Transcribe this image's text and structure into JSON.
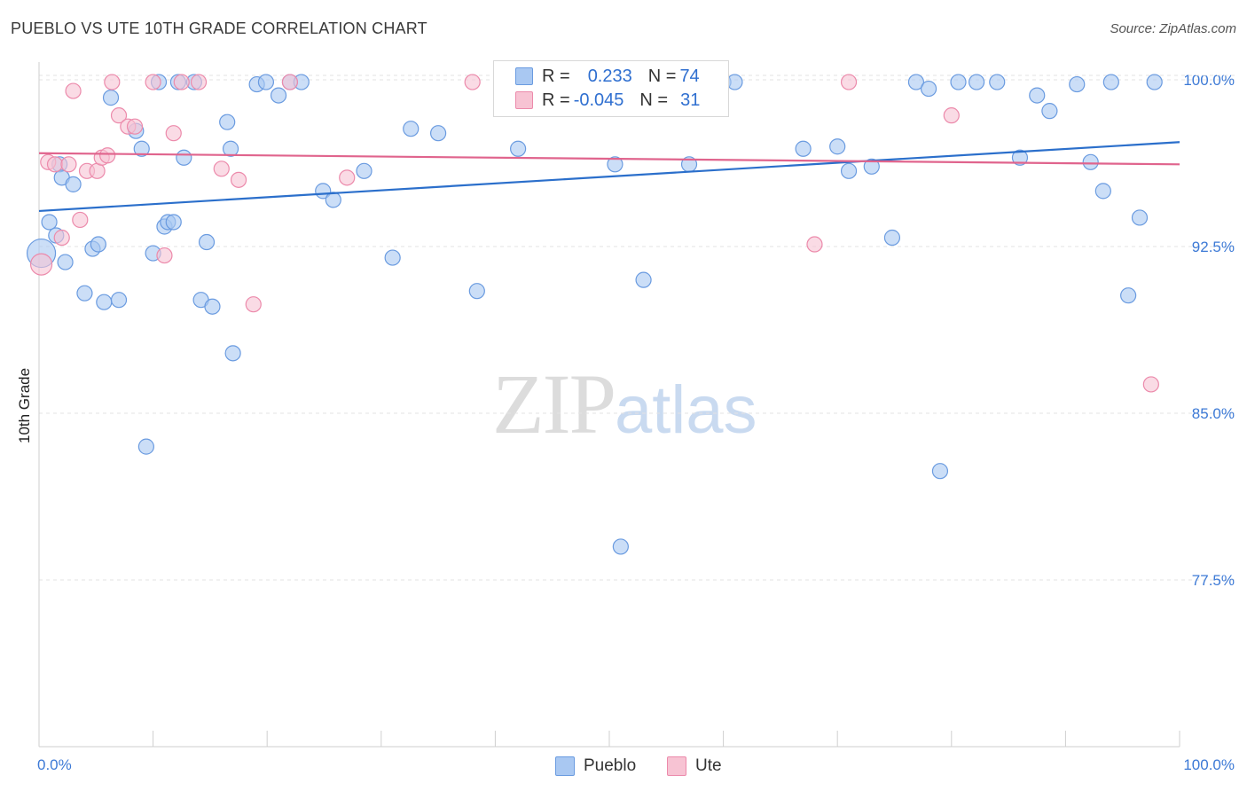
{
  "header": {
    "title": "PUEBLO VS UTE 10TH GRADE CORRELATION CHART",
    "source": "Source: ZipAtlas.com"
  },
  "watermark": {
    "zip": "ZIP",
    "atlas": "atlas"
  },
  "legend": {
    "pueblo": {
      "r_label": "R =",
      "r_value": "0.233",
      "n_label": "N =",
      "n_value": "74"
    },
    "ute": {
      "r_label": "R =",
      "r_value": "-0.045",
      "n_label": "N =",
      "n_value": "31"
    }
  },
  "bottom_legend": {
    "pueblo": "Pueblo",
    "ute": "Ute"
  },
  "colors": {
    "pueblo_fill": "#a9c8f2",
    "pueblo_stroke": "#6a9be0",
    "pueblo_line": "#2b6fcb",
    "ute_fill": "#f7c3d3",
    "ute_stroke": "#ec8aab",
    "ute_line": "#e0648d",
    "tick_label": "#3d7ad6",
    "grid": "#e3e3e3"
  },
  "chart_data": {
    "type": "scatter",
    "title": "PUEBLO VS UTE 10TH GRADE CORRELATION CHART",
    "xlabel": "",
    "ylabel": "10th Grade",
    "xlim": [
      0,
      100
    ],
    "ylim": [
      70,
      100.8
    ],
    "x_tick_labels": [
      "0.0%",
      "100.0%"
    ],
    "y_ticks": [
      77.5,
      85.0,
      92.5,
      100.0
    ],
    "y_tick_labels": [
      "77.5%",
      "85.0%",
      "92.5%",
      "100.0%"
    ],
    "grid": true,
    "legend_position": "top-center",
    "series": [
      {
        "name": "Pueblo",
        "trend": {
          "x": [
            0,
            100
          ],
          "y": [
            94.1,
            97.2
          ]
        },
        "points": [
          [
            0.2,
            92.2
          ],
          [
            0.9,
            93.6
          ],
          [
            1.5,
            93.0
          ],
          [
            1.8,
            96.2
          ],
          [
            2.0,
            95.6
          ],
          [
            2.3,
            91.8
          ],
          [
            3.0,
            95.3
          ],
          [
            4.0,
            90.4
          ],
          [
            4.7,
            92.4
          ],
          [
            5.2,
            92.6
          ],
          [
            5.7,
            90.0
          ],
          [
            6.3,
            99.2
          ],
          [
            7.0,
            90.1
          ],
          [
            8.5,
            97.7
          ],
          [
            9.0,
            96.9
          ],
          [
            9.4,
            83.5
          ],
          [
            10.0,
            92.2
          ],
          [
            10.5,
            99.9
          ],
          [
            11.0,
            93.4
          ],
          [
            11.3,
            93.6
          ],
          [
            11.8,
            93.6
          ],
          [
            12.2,
            99.9
          ],
          [
            12.7,
            96.5
          ],
          [
            13.6,
            99.9
          ],
          [
            14.2,
            90.1
          ],
          [
            14.7,
            92.7
          ],
          [
            15.2,
            89.8
          ],
          [
            16.5,
            98.1
          ],
          [
            16.8,
            96.9
          ],
          [
            17.0,
            87.7
          ],
          [
            19.1,
            99.8
          ],
          [
            19.9,
            99.9
          ],
          [
            21.0,
            99.3
          ],
          [
            22.0,
            99.9
          ],
          [
            23.0,
            99.9
          ],
          [
            24.9,
            95.0
          ],
          [
            25.8,
            94.6
          ],
          [
            28.5,
            95.9
          ],
          [
            31.0,
            92.0
          ],
          [
            32.6,
            97.8
          ],
          [
            35.0,
            97.6
          ],
          [
            38.4,
            90.5
          ],
          [
            42.0,
            96.9
          ],
          [
            43.0,
            99.9
          ],
          [
            46.3,
            99.9
          ],
          [
            46.8,
            98.7
          ],
          [
            50.5,
            96.2
          ],
          [
            51.0,
            79.0
          ],
          [
            53.0,
            91.0
          ],
          [
            55.0,
            99.9
          ],
          [
            57.0,
            96.2
          ],
          [
            60.0,
            99.9
          ],
          [
            61.0,
            99.9
          ],
          [
            67.0,
            96.9
          ],
          [
            70.0,
            97.0
          ],
          [
            71.0,
            95.9
          ],
          [
            73.0,
            96.1
          ],
          [
            74.8,
            92.9
          ],
          [
            76.9,
            99.9
          ],
          [
            78.0,
            99.6
          ],
          [
            79.0,
            82.4
          ],
          [
            80.6,
            99.9
          ],
          [
            82.2,
            99.9
          ],
          [
            84.0,
            99.9
          ],
          [
            86.0,
            96.5
          ],
          [
            87.5,
            99.3
          ],
          [
            88.6,
            98.6
          ],
          [
            91.0,
            99.8
          ],
          [
            92.2,
            96.3
          ],
          [
            93.3,
            95.0
          ],
          [
            94.0,
            99.9
          ],
          [
            95.5,
            90.3
          ],
          [
            96.5,
            93.8
          ],
          [
            97.8,
            99.9
          ]
        ]
      },
      {
        "name": "Ute",
        "trend": {
          "x": [
            0,
            100
          ],
          "y": [
            96.7,
            96.2
          ]
        },
        "points": [
          [
            0.2,
            91.7
          ],
          [
            0.8,
            96.3
          ],
          [
            1.4,
            96.2
          ],
          [
            2.0,
            92.9
          ],
          [
            2.6,
            96.2
          ],
          [
            3.0,
            99.5
          ],
          [
            3.6,
            93.7
          ],
          [
            4.2,
            95.9
          ],
          [
            5.1,
            95.9
          ],
          [
            5.5,
            96.5
          ],
          [
            6.0,
            96.6
          ],
          [
            6.4,
            99.9
          ],
          [
            7.0,
            98.4
          ],
          [
            7.8,
            97.9
          ],
          [
            8.4,
            97.9
          ],
          [
            10.0,
            99.9
          ],
          [
            11.0,
            92.1
          ],
          [
            11.8,
            97.6
          ],
          [
            12.5,
            99.9
          ],
          [
            14.0,
            99.9
          ],
          [
            16.0,
            96.0
          ],
          [
            17.5,
            95.5
          ],
          [
            18.8,
            89.9
          ],
          [
            22.0,
            99.9
          ],
          [
            27.0,
            95.6
          ],
          [
            38.0,
            99.9
          ],
          [
            48.0,
            99.9
          ],
          [
            68.0,
            92.6
          ],
          [
            71.0,
            99.9
          ],
          [
            80.0,
            98.4
          ],
          [
            97.5,
            86.3
          ]
        ]
      }
    ]
  }
}
